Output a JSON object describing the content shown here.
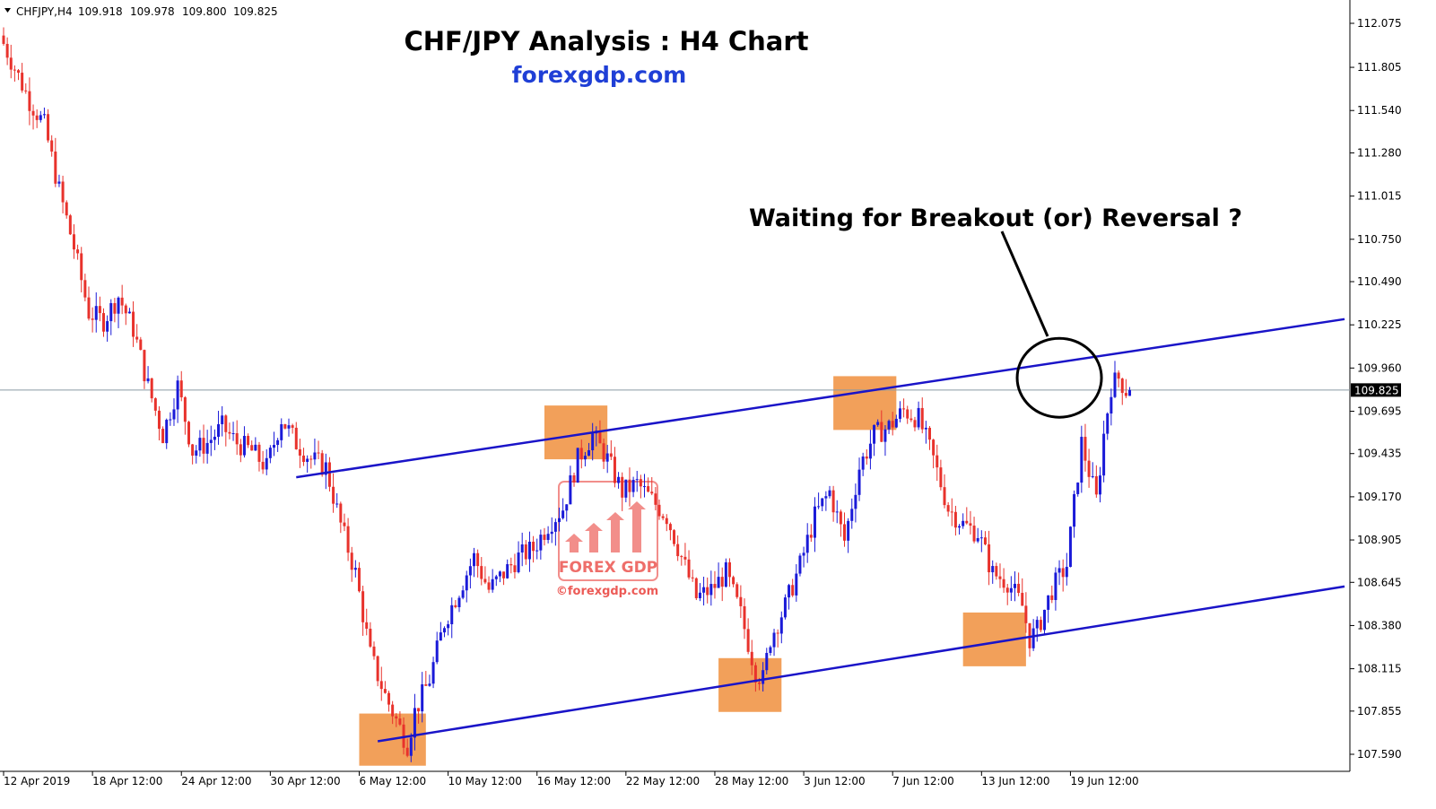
{
  "chart_data": {
    "type": "candlestick",
    "symbol_header": "CHFJPY,H4",
    "ohlc_header": [
      "109.918",
      "109.978",
      "109.800",
      "109.825"
    ],
    "title": "CHF/JPY Analysis : H4 Chart",
    "subtitle": "forexgdp.com",
    "annotation": "Waiting for Breakout (or) Reversal ?",
    "current_price": 109.825,
    "current_price_label": "109.825",
    "ylim": [
      107.45,
      112.12
    ],
    "y_ticks": [
      {
        "v": 112.075,
        "label": "112.075"
      },
      {
        "v": 111.805,
        "label": "111.805"
      },
      {
        "v": 111.54,
        "label": "111.540"
      },
      {
        "v": 111.28,
        "label": "111.280"
      },
      {
        "v": 111.015,
        "label": "111.015"
      },
      {
        "v": 110.75,
        "label": "110.750"
      },
      {
        "v": 110.49,
        "label": "110.490"
      },
      {
        "v": 110.225,
        "label": "110.225"
      },
      {
        "v": 109.96,
        "label": "109.960"
      },
      {
        "v": 109.695,
        "label": "109.695"
      },
      {
        "v": 109.435,
        "label": "109.435"
      },
      {
        "v": 109.17,
        "label": "109.170"
      },
      {
        "v": 108.905,
        "label": "108.905"
      },
      {
        "v": 108.645,
        "label": "108.645"
      },
      {
        "v": 108.38,
        "label": "108.380"
      },
      {
        "v": 108.115,
        "label": "108.115"
      },
      {
        "v": 107.855,
        "label": "107.855"
      },
      {
        "v": 107.59,
        "label": "107.590"
      }
    ],
    "x_ticks": [
      {
        "bar": 0,
        "label": "12 Apr 2019"
      },
      {
        "bar": 24,
        "label": "18 Apr 12:00"
      },
      {
        "bar": 48,
        "label": "24 Apr 12:00"
      },
      {
        "bar": 72,
        "label": "30 Apr 12:00"
      },
      {
        "bar": 96,
        "label": "6 May 12:00"
      },
      {
        "bar": 120,
        "label": "10 May 12:00"
      },
      {
        "bar": 144,
        "label": "16 May 12:00"
      },
      {
        "bar": 168,
        "label": "22 May 12:00"
      },
      {
        "bar": 192,
        "label": "28 May 12:00"
      },
      {
        "bar": 216,
        "label": "3 Jun 12:00"
      },
      {
        "bar": 240,
        "label": "7 Jun 12:00"
      },
      {
        "bar": 264,
        "label": "13 Jun 12:00"
      },
      {
        "bar": 288,
        "label": "19 Jun 12:00"
      }
    ],
    "price_path": [
      [
        0,
        112.0
      ],
      [
        4,
        111.8
      ],
      [
        8,
        111.6
      ],
      [
        12,
        111.45
      ],
      [
        16,
        111.05
      ],
      [
        20,
        110.7
      ],
      [
        24,
        110.3
      ],
      [
        28,
        110.25
      ],
      [
        32,
        110.4
      ],
      [
        36,
        110.2
      ],
      [
        40,
        109.85
      ],
      [
        44,
        109.55
      ],
      [
        48,
        109.85
      ],
      [
        52,
        109.45
      ],
      [
        56,
        109.5
      ],
      [
        60,
        109.6
      ],
      [
        64,
        109.5
      ],
      [
        68,
        109.45
      ],
      [
        72,
        109.35
      ],
      [
        76,
        109.65
      ],
      [
        80,
        109.5
      ],
      [
        84,
        109.4
      ],
      [
        88,
        109.35
      ],
      [
        92,
        109.0
      ],
      [
        96,
        108.7
      ],
      [
        100,
        108.2
      ],
      [
        104,
        107.95
      ],
      [
        108,
        107.75
      ],
      [
        110,
        107.65
      ],
      [
        112,
        107.85
      ],
      [
        116,
        108.05
      ],
      [
        120,
        108.4
      ],
      [
        124,
        108.6
      ],
      [
        128,
        108.8
      ],
      [
        132,
        108.6
      ],
      [
        136,
        108.7
      ],
      [
        140,
        108.8
      ],
      [
        144,
        108.85
      ],
      [
        148,
        109.0
      ],
      [
        152,
        109.1
      ],
      [
        156,
        109.4
      ],
      [
        160,
        109.55
      ],
      [
        164,
        109.4
      ],
      [
        168,
        109.2
      ],
      [
        172,
        109.25
      ],
      [
        176,
        109.15
      ],
      [
        180,
        109.05
      ],
      [
        184,
        108.8
      ],
      [
        188,
        108.55
      ],
      [
        192,
        108.6
      ],
      [
        196,
        108.7
      ],
      [
        200,
        108.45
      ],
      [
        204,
        108.1
      ],
      [
        206,
        108.05
      ],
      [
        208,
        108.3
      ],
      [
        212,
        108.5
      ],
      [
        216,
        108.75
      ],
      [
        220,
        109.05
      ],
      [
        224,
        109.2
      ],
      [
        228,
        108.9
      ],
      [
        232,
        109.35
      ],
      [
        236,
        109.55
      ],
      [
        240,
        109.6
      ],
      [
        244,
        109.7
      ],
      [
        248,
        109.65
      ],
      [
        252,
        109.4
      ],
      [
        256,
        109.1
      ],
      [
        260,
        109.0
      ],
      [
        264,
        108.95
      ],
      [
        268,
        108.7
      ],
      [
        272,
        108.65
      ],
      [
        276,
        108.5
      ],
      [
        278,
        108.3
      ],
      [
        280,
        108.35
      ],
      [
        284,
        108.6
      ],
      [
        288,
        108.75
      ],
      [
        292,
        109.5
      ],
      [
        296,
        109.15
      ],
      [
        298,
        109.55
      ],
      [
        300,
        109.85
      ],
      [
        302,
        109.9
      ],
      [
        304,
        109.825
      ]
    ],
    "trendlines": [
      {
        "from": [
          79,
          109.29
        ],
        "to": [
          362,
          110.26
        ]
      },
      {
        "from": [
          101,
          107.67
        ],
        "to": [
          362,
          108.62
        ]
      }
    ],
    "highlight_zones": [
      {
        "from_bar": 146,
        "to_bar": 163,
        "y_high": 109.73,
        "y_low": 109.4
      },
      {
        "from_bar": 96,
        "to_bar": 114,
        "y_high": 107.84,
        "y_low": 107.52
      },
      {
        "from_bar": 193,
        "to_bar": 210,
        "y_high": 108.18,
        "y_low": 107.85
      },
      {
        "from_bar": 224,
        "to_bar": 241,
        "y_high": 109.91,
        "y_low": 109.58
      },
      {
        "from_bar": 259,
        "to_bar": 276,
        "y_high": 108.46,
        "y_low": 108.13
      }
    ],
    "callout": {
      "center_bar": 285,
      "center_y": 109.9,
      "pointer_from": [
        279,
        110.78
      ],
      "pointer_to": [
        281,
        110.12
      ]
    },
    "watermark": {
      "brand": "FOREX GDP",
      "site": "©forexgdp.com"
    },
    "colors": {
      "bull": "#1a1ad8",
      "bear": "#e8322c",
      "trendline": "#1a14c8",
      "zone": "#f2a05a",
      "grid_price_line": "#8a9aa5",
      "price_tag_bg": "#000000",
      "price_tag_text": "#ffffff",
      "subtitle": "#1f3fd6",
      "watermark": "#e8322c"
    }
  }
}
